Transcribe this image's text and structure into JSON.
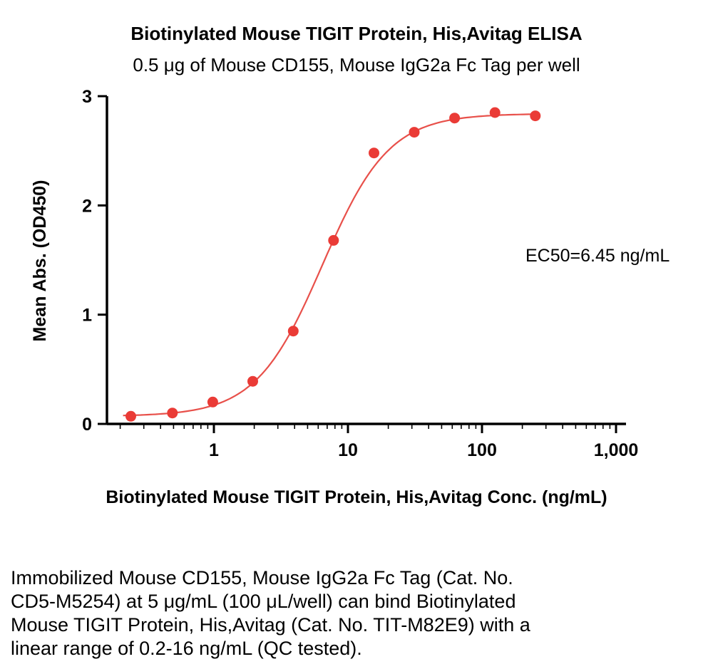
{
  "title": "Biotinylated Mouse TIGIT Protein, His,Avitag ELISA",
  "subtitle": "0.5 μg of Mouse CD155, Mouse IgG2a Fc Tag per well",
  "chart_data": {
    "type": "scatter",
    "x": [
      0.24,
      0.49,
      0.98,
      1.95,
      3.91,
      7.81,
      15.63,
      31.25,
      62.5,
      125,
      250
    ],
    "y": [
      0.07,
      0.1,
      0.2,
      0.39,
      0.85,
      1.68,
      2.48,
      2.67,
      2.8,
      2.85,
      2.82
    ],
    "title": "Biotinylated Mouse TIGIT Protein, His,Avitag ELISA",
    "subtitle": "0.5 μg of Mouse CD155, Mouse IgG2a Fc Tag per well",
    "xlabel": "Biotinylated Mouse TIGIT Protein, His,Avitag Conc. (ng/mL)",
    "ylabel": "Mean Abs. (OD450)",
    "x_scale": "log",
    "x_ticks": [
      1,
      10,
      100,
      1000
    ],
    "x_tick_labels": [
      "1",
      "10",
      "100",
      "1,000"
    ],
    "y_ticks": [
      0,
      1,
      2,
      3
    ],
    "ylim": [
      0,
      3
    ],
    "xlim": [
      0.16,
      1100
    ],
    "annotation": "EC50=6.45 ng/mL",
    "fit": {
      "bottom": 0.07,
      "top": 2.84,
      "ec50": 6.45,
      "hill": 1.75
    },
    "curve_x_range": [
      0.21,
      260
    ],
    "point_color": "#ea3b36",
    "line_color": "#e8504a",
    "axis_color": "#000000",
    "grid": false,
    "legend": "none"
  },
  "caption": {
    "lines": [
      "Immobilized Mouse CD155, Mouse IgG2a Fc Tag (Cat. No.",
      "CD5-M5254) at 5 μg/mL (100 μL/well) can bind Biotinylated",
      "Mouse TIGIT Protein, His,Avitag (Cat. No. TIT-M82E9) with a",
      "linear range of 0.2-16 ng/mL (QC tested)."
    ]
  }
}
